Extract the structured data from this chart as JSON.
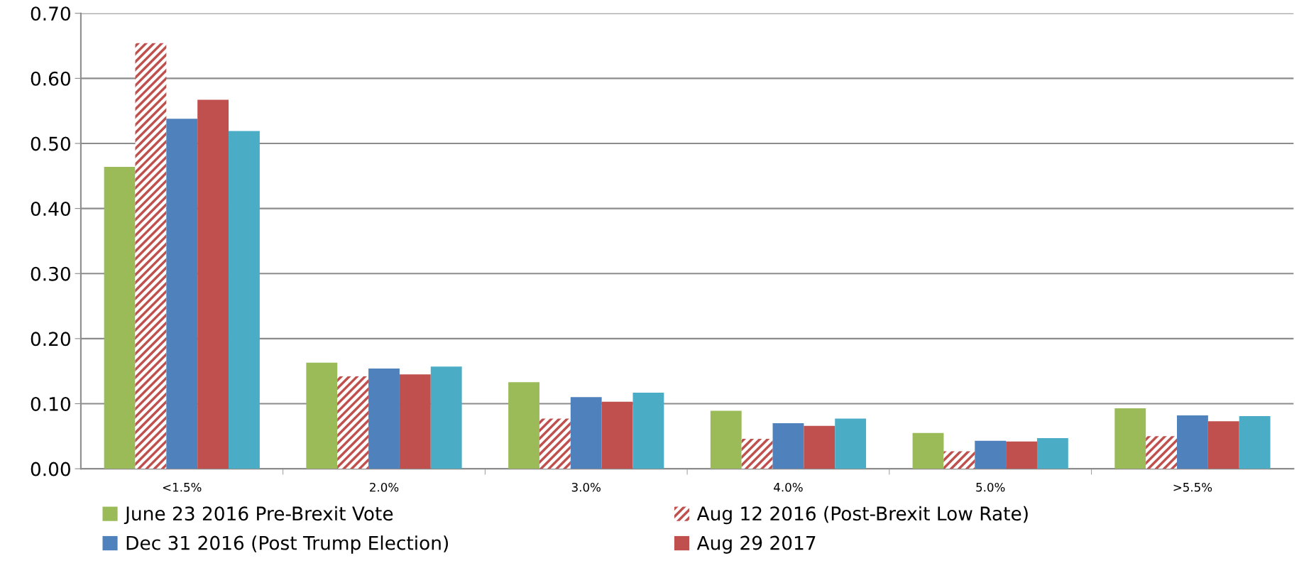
{
  "chart_data": {
    "type": "bar",
    "categories": [
      "<1.5%",
      "2.0%",
      "3.0%",
      "4.0%",
      "5.0%",
      ">5.5%"
    ],
    "series": [
      {
        "name": "June 23 2016 Pre-Brexit Vote",
        "color": "#9bbb59",
        "values": [
          0.464,
          0.163,
          0.133,
          0.089,
          0.055,
          0.093
        ]
      },
      {
        "name": "Aug 12 2016 (Post-Brexit Low Rate)",
        "color": "#c0504d",
        "values": [
          0.654,
          0.142,
          0.077,
          0.046,
          0.027,
          0.05
        ]
      },
      {
        "name": "Dec 31 2016 (Post Trump Election)",
        "color": "#4f81bd",
        "values": [
          0.538,
          0.154,
          0.11,
          0.07,
          0.043,
          0.082
        ]
      },
      {
        "name": "Aug 29 2017",
        "color": "#c0504d",
        "values": [
          0.567,
          0.145,
          0.103,
          0.066,
          0.042,
          0.073
        ]
      },
      {
        "color": "#4bacc6",
        "values": [
          0.519,
          0.157,
          0.117,
          0.077,
          0.047,
          0.081
        ]
      }
    ],
    "ylim": [
      0,
      0.7
    ],
    "yticks": [
      {
        "value": 0,
        "label": "0.00"
      },
      {
        "value": 0.1,
        "label": "0.10"
      },
      {
        "value": 0.2,
        "label": "0.20"
      },
      {
        "value": 0.3,
        "label": "0.30"
      },
      {
        "value": 0.4,
        "label": "0.40"
      },
      {
        "value": 0.5,
        "label": "0.50"
      },
      {
        "value": 0.6,
        "label": "0.60"
      },
      {
        "value": 0.7,
        "label": "0.70"
      }
    ],
    "grid": "y",
    "legend": "bottom"
  }
}
